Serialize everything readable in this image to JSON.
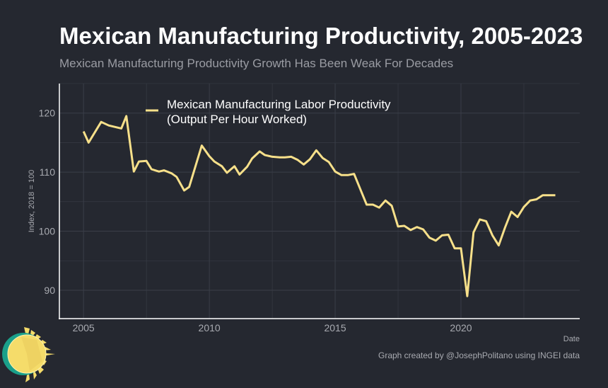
{
  "chart_data": {
    "type": "line",
    "title": "Mexican Manufacturing Productivity, 2005-2023",
    "subtitle": "Mexican Manufacturing Productivity Growth Has Been Weak For Decades",
    "xlabel": "Date",
    "ylabel": "Index, 2018 = 100",
    "xlim": [
      2004.04,
      2024.72
    ],
    "ylim": [
      85.2,
      125.0
    ],
    "xticks": [
      2005,
      2010,
      2015,
      2020
    ],
    "xtick_labels": [
      "2005",
      "2010",
      "2015",
      "2020"
    ],
    "yticks": [
      90,
      100,
      110,
      120
    ],
    "ytick_labels": [
      "90",
      "100",
      "110",
      "120"
    ],
    "grid": true,
    "legend_position": "top-left",
    "series": [
      {
        "name_line1": "Mexican Manufacturing Labor Productivity",
        "name_line2": "(Output Per Hour Worked)",
        "color": "#f7e08a",
        "x": [
          2005.0,
          2005.2,
          2005.7,
          2006.0,
          2006.5,
          2006.7,
          2007.0,
          2007.2,
          2007.5,
          2007.7,
          2008.0,
          2008.2,
          2008.5,
          2008.7,
          2009.0,
          2009.2,
          2009.7,
          2010.0,
          2010.2,
          2010.5,
          2010.7,
          2011.0,
          2011.2,
          2011.5,
          2011.7,
          2012.0,
          2012.2,
          2012.5,
          2012.8,
          2013.0,
          2013.25,
          2013.5,
          2013.75,
          2014.0,
          2014.25,
          2014.5,
          2014.75,
          2015.0,
          2015.25,
          2015.5,
          2015.75,
          2016.25,
          2016.5,
          2016.75,
          2017.0,
          2017.25,
          2017.5,
          2017.75,
          2018.0,
          2018.25,
          2018.5,
          2018.75,
          2019.0,
          2019.25,
          2019.5,
          2019.75,
          2020.0,
          2020.25,
          2020.5,
          2020.75,
          2021.0,
          2021.25,
          2021.5,
          2021.75,
          2022.0,
          2022.25,
          2022.5,
          2022.75,
          2023.0,
          2023.25,
          2023.5,
          2023.75
        ],
        "y": [
          116.9,
          115.0,
          118.5,
          117.9,
          117.4,
          119.5,
          110.1,
          111.8,
          111.9,
          110.5,
          110.1,
          110.3,
          109.8,
          109.2,
          106.9,
          107.5,
          114.5,
          112.7,
          111.8,
          111.0,
          109.9,
          111.0,
          109.6,
          110.9,
          112.3,
          113.5,
          112.9,
          112.6,
          112.5,
          112.5,
          112.6,
          112.1,
          111.3,
          112.2,
          113.7,
          112.4,
          111.7,
          110.1,
          109.5,
          109.5,
          109.7,
          104.5,
          104.5,
          104.0,
          105.2,
          104.3,
          100.8,
          100.9,
          100.2,
          100.7,
          100.3,
          98.9,
          98.4,
          99.3,
          99.4,
          97.1,
          97.1,
          89.0,
          99.8,
          102.0,
          101.7,
          99.3,
          97.6,
          100.6,
          103.3,
          102.4,
          104.1,
          105.2,
          105.4,
          106.1,
          106.1,
          106.1
        ]
      }
    ],
    "credit": "Graph created by @JosephPolitano using INGEI data"
  },
  "colors": {
    "background": "#252830",
    "grid": "#3a3e48",
    "line": "#f7e08a"
  }
}
